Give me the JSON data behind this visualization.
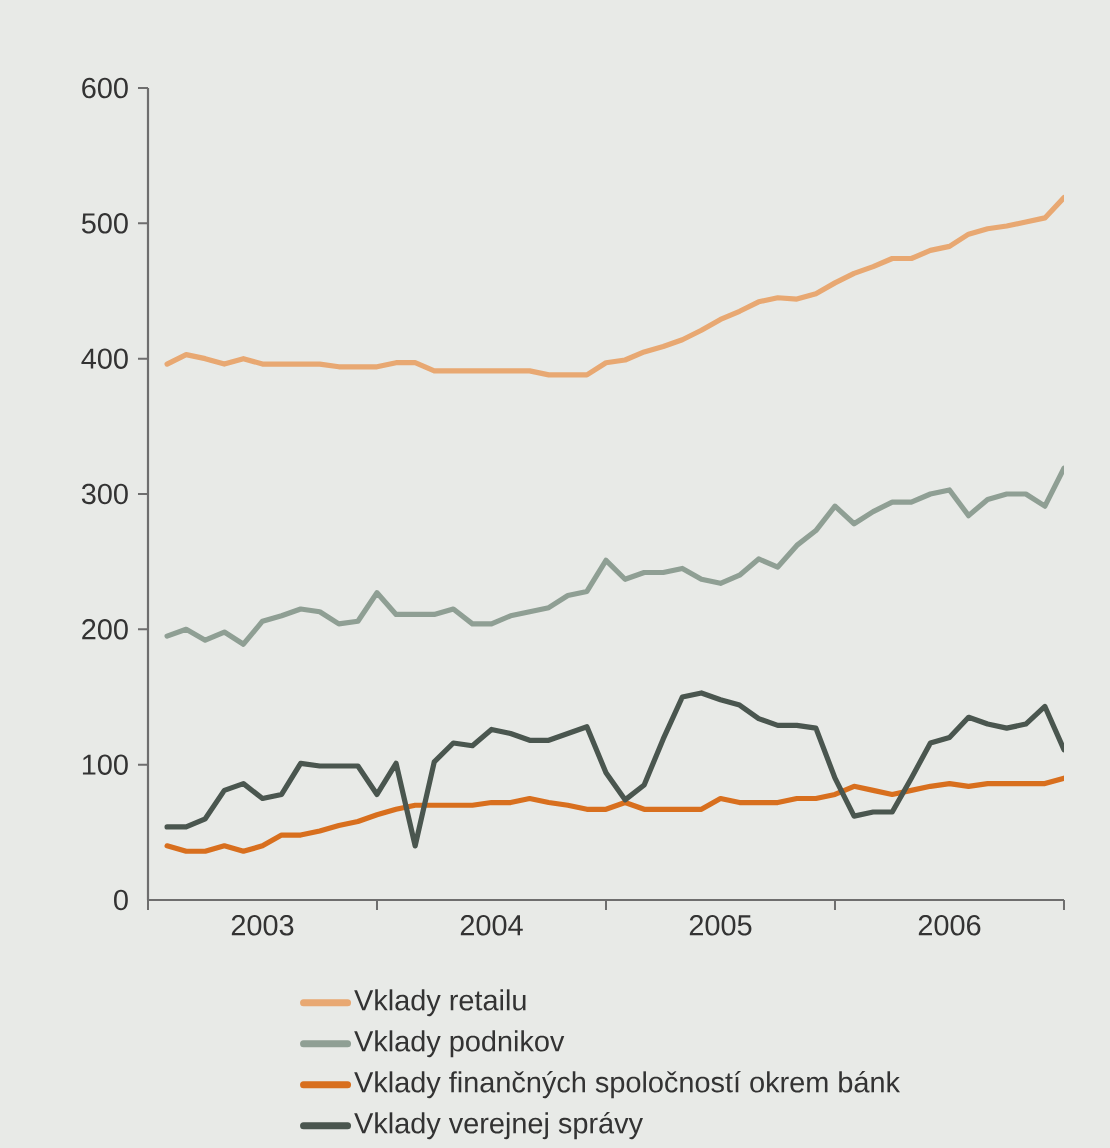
{
  "chart_data": {
    "type": "line",
    "x": [
      "2003-01",
      "2003-02",
      "2003-03",
      "2003-04",
      "2003-05",
      "2003-06",
      "2003-07",
      "2003-08",
      "2003-09",
      "2003-10",
      "2003-11",
      "2003-12",
      "2004-01",
      "2004-02",
      "2004-03",
      "2004-04",
      "2004-05",
      "2004-06",
      "2004-07",
      "2004-08",
      "2004-09",
      "2004-10",
      "2004-11",
      "2004-12",
      "2005-01",
      "2005-02",
      "2005-03",
      "2005-04",
      "2005-05",
      "2005-06",
      "2005-07",
      "2005-08",
      "2005-09",
      "2005-10",
      "2005-11",
      "2005-12",
      "2006-01",
      "2006-02",
      "2006-03",
      "2006-04",
      "2006-05",
      "2006-06",
      "2006-07",
      "2006-08",
      "2006-09",
      "2006-10",
      "2006-11",
      "2006-12"
    ],
    "series": [
      {
        "name": "Vklady retailu",
        "color": "#e8a872",
        "values": [
          396,
          403,
          400,
          396,
          400,
          396,
          396,
          396,
          396,
          394,
          394,
          394,
          397,
          397,
          391,
          391,
          391,
          391,
          391,
          391,
          388,
          388,
          388,
          397,
          399,
          405,
          409,
          414,
          421,
          429,
          435,
          442,
          445,
          444,
          448,
          456,
          463,
          468,
          474,
          474,
          480,
          483,
          492,
          496,
          498,
          501,
          504,
          519
        ]
      },
      {
        "name": "Vklady podnikov",
        "color": "#8f9f94",
        "values": [
          195,
          200,
          192,
          198,
          189,
          206,
          210,
          215,
          213,
          204,
          206,
          227,
          211,
          211,
          211,
          215,
          204,
          204,
          210,
          213,
          216,
          225,
          228,
          251,
          237,
          242,
          242,
          245,
          237,
          234,
          240,
          252,
          246,
          262,
          273,
          291,
          278,
          287,
          294,
          294,
          300,
          303,
          284,
          296,
          300,
          300,
          291,
          319
        ]
      },
      {
        "name": "Vklady finančných spoločností okrem bánk",
        "color": "#d86f1e",
        "values": [
          40,
          36,
          36,
          40,
          36,
          40,
          48,
          48,
          51,
          55,
          58,
          63,
          67,
          70,
          70,
          70,
          70,
          72,
          72,
          75,
          72,
          70,
          67,
          67,
          72,
          67,
          67,
          67,
          67,
          75,
          72,
          72,
          72,
          75,
          75,
          78,
          84,
          81,
          78,
          81,
          84,
          86,
          84,
          86,
          86,
          86,
          86,
          90
        ]
      },
      {
        "name": "Vklady verejnej správy",
        "color": "#4a564f",
        "values": [
          54,
          54,
          60,
          81,
          86,
          75,
          78,
          101,
          99,
          99,
          99,
          78,
          101,
          40,
          102,
          116,
          114,
          126,
          123,
          118,
          118,
          123,
          128,
          94,
          74,
          85,
          119,
          150,
          153,
          148,
          144,
          134,
          129,
          129,
          127,
          90,
          62,
          65,
          65,
          90,
          116,
          120,
          135,
          130,
          127,
          130,
          143,
          111
        ]
      }
    ],
    "xlim": [
      "2002-12",
      "2006-12"
    ],
    "xticks": [
      {
        "value": "2002-12",
        "label": null
      },
      {
        "value": "2003-06",
        "label": "2003"
      },
      {
        "value": "2003-12",
        "label": null
      },
      {
        "value": "2004-06",
        "label": "2004"
      },
      {
        "value": "2004-12",
        "label": null
      },
      {
        "value": "2005-06",
        "label": "2005"
      },
      {
        "value": "2005-12",
        "label": null
      },
      {
        "value": "2006-06",
        "label": "2006"
      },
      {
        "value": "2006-12",
        "label": null
      }
    ],
    "ylim": [
      0,
      600
    ],
    "yticks": [
      0,
      100,
      200,
      300,
      400,
      500,
      600
    ],
    "legend": "bottom",
    "marker": "none"
  }
}
